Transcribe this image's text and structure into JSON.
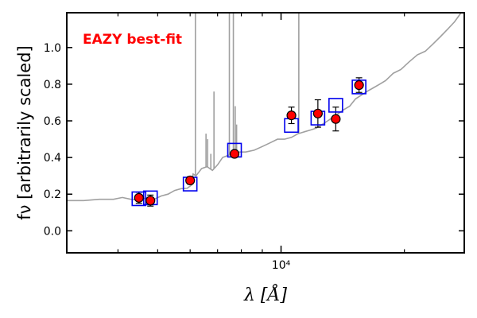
{
  "chart_data": {
    "type": "scatter",
    "title": "",
    "annotation": "EAZY best-fit",
    "annotation_color": "#ff0000",
    "xlabel": "λ [Å]",
    "ylabel": "fν [arbitrarily scaled]",
    "x_scale": "log",
    "xlim": [
      3000,
      28000
    ],
    "ylim": [
      -0.12,
      1.19
    ],
    "x_tick_labels": [
      {
        "value": 10000,
        "label": "10⁴"
      }
    ],
    "y_ticks": [
      0.0,
      0.2,
      0.4,
      0.6,
      0.8,
      1.0
    ],
    "y_tick_labels": [
      "0.0",
      "0.2",
      "0.4",
      "0.6",
      "0.8",
      "1.0"
    ],
    "colors": {
      "template": "#a0a0a0",
      "model_box": "#0000ee",
      "observed": "#ff0000",
      "errorbar": "#000000"
    },
    "series": [
      {
        "name": "Observed photometry",
        "style": "red filled circles with error bars",
        "x": [
          4500,
          4800,
          6000,
          7700,
          10600,
          12300,
          13600,
          15500
        ],
        "y": [
          0.18,
          0.165,
          0.275,
          0.42,
          0.63,
          0.64,
          0.61,
          0.795
        ],
        "yerr": [
          0.03,
          0.03,
          0.02,
          0.015,
          0.045,
          0.075,
          0.065,
          0.04
        ]
      },
      {
        "name": "EAZY model photometry",
        "style": "open blue squares",
        "x": [
          4500,
          4800,
          6000,
          7700,
          10600,
          12300,
          13600,
          15500
        ],
        "y": [
          0.175,
          0.18,
          0.255,
          0.44,
          0.575,
          0.615,
          0.685,
          0.785
        ]
      },
      {
        "name": "EAZY best-fit template",
        "style": "grey line",
        "x": [
          3000,
          3300,
          3600,
          3900,
          4100,
          4300,
          4500,
          4700,
          4900,
          5100,
          5300,
          5500,
          5700,
          5900,
          6050,
          6100,
          6200,
          6400,
          6600,
          6800,
          7000,
          7200,
          7400,
          7600,
          7900,
          8200,
          8600,
          9000,
          9400,
          9800,
          10200,
          10600,
          11000,
          11400,
          11800,
          12200,
          12600,
          13000,
          13400,
          13800,
          14200,
          14700,
          15200,
          15700,
          16200,
          16800,
          17400,
          18000,
          18800,
          19600,
          20500,
          21500,
          22500,
          23500,
          24500,
          25500,
          26500,
          27500,
          28000
        ],
        "y": [
          0.165,
          0.165,
          0.172,
          0.172,
          0.182,
          0.172,
          0.168,
          0.18,
          0.172,
          0.19,
          0.2,
          0.22,
          0.23,
          0.232,
          0.25,
          0.31,
          0.3,
          0.34,
          0.35,
          0.33,
          0.36,
          0.4,
          0.41,
          0.42,
          0.43,
          0.43,
          0.44,
          0.46,
          0.48,
          0.5,
          0.5,
          0.51,
          0.53,
          0.54,
          0.55,
          0.56,
          0.58,
          0.6,
          0.62,
          0.64,
          0.66,
          0.68,
          0.72,
          0.74,
          0.76,
          0.78,
          0.8,
          0.82,
          0.86,
          0.88,
          0.92,
          0.96,
          0.98,
          1.02,
          1.06,
          1.1,
          1.14,
          1.19,
          1.21
        ],
        "emission_lines": [
          {
            "x": 6180,
            "peak": 1.19
          },
          {
            "x": 6860,
            "peak": 0.76
          },
          {
            "x": 6560,
            "peak": 0.53
          },
          {
            "x": 6620,
            "peak": 0.5
          },
          {
            "x": 6740,
            "peak": 0.42
          },
          {
            "x": 7480,
            "peak": 1.19
          },
          {
            "x": 7650,
            "peak": 1.19
          },
          {
            "x": 7730,
            "peak": 0.68
          },
          {
            "x": 7790,
            "peak": 0.58
          },
          {
            "x": 11050,
            "peak": 1.19
          }
        ]
      }
    ]
  }
}
